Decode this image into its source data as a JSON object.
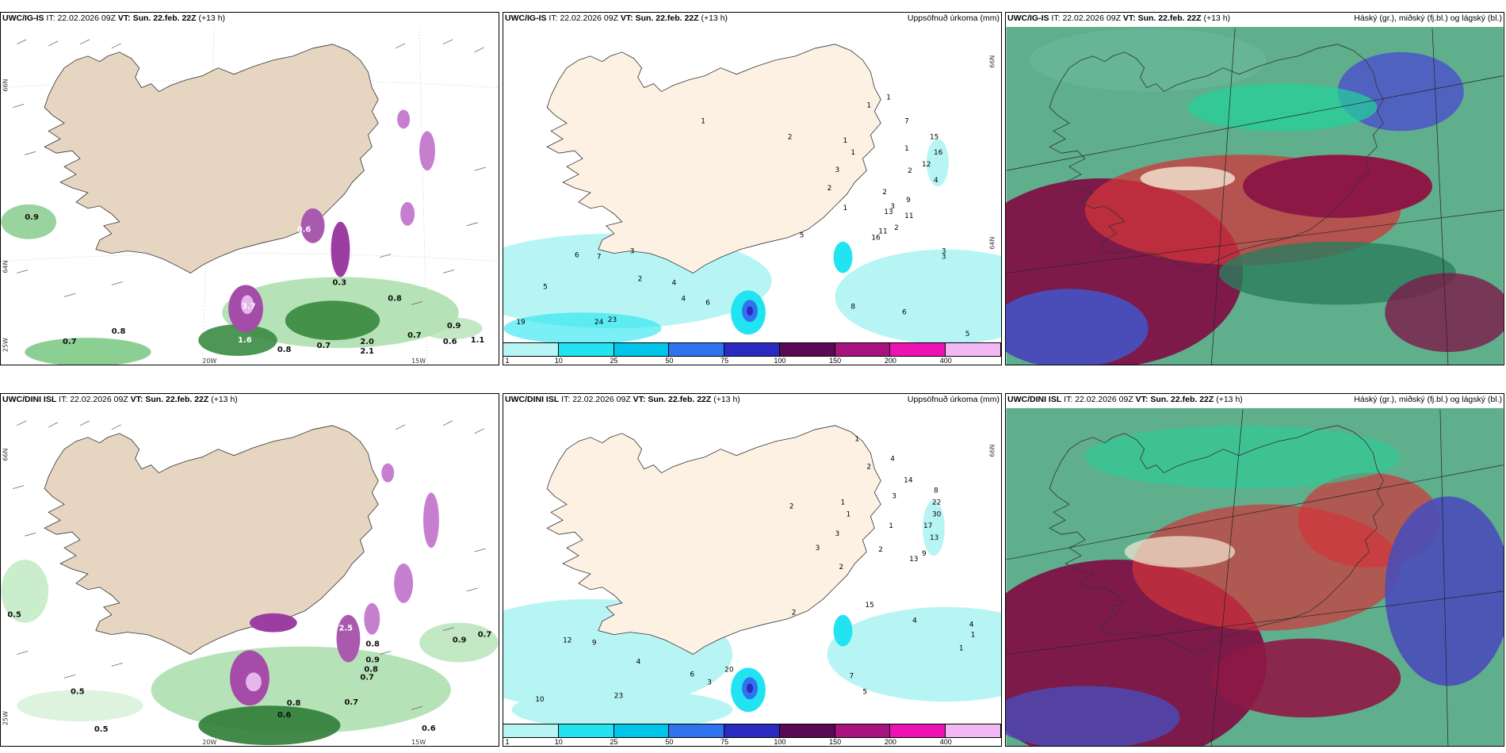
{
  "panels": {
    "tl": {
      "model": "UWC/IG-IS",
      "it_label": "IT:",
      "it": "22.02.2026 09Z",
      "vt_label": "VT:",
      "vt": "Sun. 22.feb. 22Z",
      "lead": "(+13 h)",
      "right": ""
    },
    "tm": {
      "model": "UWC/IG-IS",
      "it_label": "IT:",
      "it": "22.02.2026 09Z",
      "vt_label": "VT:",
      "vt": "Sun. 22.feb. 22Z",
      "lead": "(+13 h)",
      "right": "Uppsöfnuð úrkoma (mm)"
    },
    "tr": {
      "model": "UWC/IG-IS",
      "it_label": "IT:",
      "it": "22.02.2026 09Z",
      "vt_label": "VT:",
      "vt": "Sun. 22.feb. 22Z",
      "lead": "(+13 h)",
      "right": "Háský (gr.), miðský (fj.bl.) og lágský (bl.)"
    },
    "bl": {
      "model": "UWC/DINI ISL",
      "it_label": "IT:",
      "it": "22.02.2026 09Z",
      "vt_label": "VT:",
      "vt": "Sun. 22.feb. 22Z",
      "lead": "(+13 h)",
      "right": ""
    },
    "bm": {
      "model": "UWC/DINI ISL",
      "it_label": "IT:",
      "it": "22.02.2026 09Z",
      "vt_label": "VT:",
      "vt": "Sun. 22.feb. 22Z",
      "lead": "(+13 h)",
      "right": "Uppsöfnuð úrkoma (mm)"
    },
    "br": {
      "model": "UWC/DINI ISL",
      "it_label": "IT:",
      "it": "22.02.2026 09Z",
      "vt_label": "VT:",
      "vt": "Sun. 22.feb. 22Z",
      "lead": "(+13 h)",
      "right": "Háský (gr.), miðský (fj.bl.) og lágský (bl.)"
    }
  },
  "coords": {
    "lat66": "66N",
    "lat64": "64N",
    "lon20": "20W",
    "lon15": "15W",
    "lon25": "25W"
  },
  "colorbar": {
    "labels": [
      "1",
      "10",
      "25",
      "50",
      "75",
      "100",
      "150",
      "200",
      "400"
    ],
    "colors": [
      "#b7f5f5",
      "#22e4f0",
      "#00c4e8",
      "#2f73ee",
      "#2a2ac0",
      "#5a0a54",
      "#a8137f",
      "#ec12b4",
      "#f2b8f4"
    ]
  },
  "precip_top": [
    "1",
    "1",
    "7",
    "2",
    "1",
    "15",
    "1",
    "16",
    "1",
    "12",
    "2",
    "3",
    "2",
    "4",
    "2",
    "9",
    "3",
    "13",
    "1",
    "11",
    "2",
    "5",
    "16",
    "11",
    "3",
    "6",
    "7",
    "3",
    "5",
    "2",
    "4",
    "4",
    "6",
    "3",
    "8",
    "6",
    "19",
    "24",
    "23",
    "5",
    "1"
  ],
  "precip_bot": [
    "1",
    "2",
    "4",
    "14",
    "3",
    "8",
    "22",
    "30",
    "1",
    "2",
    "1",
    "17",
    "13",
    "3",
    "1",
    "2",
    "9",
    "3",
    "13",
    "2",
    "2",
    "15",
    "4",
    "4",
    "1",
    "12",
    "9",
    "4",
    "7",
    "6",
    "3",
    "20",
    "5",
    "1",
    "10",
    "23"
  ],
  "wind_top": [
    "0.9",
    "0.6",
    "0.8",
    "0.7",
    "0.8",
    "0.8",
    "0.7",
    "2.0",
    "2.1",
    "0.9",
    "1.1",
    "0.6",
    "3.7",
    "0.7",
    "1.6",
    "0.3"
  ],
  "wind_bot": [
    "0.5",
    "0.5",
    "0.5",
    "0.9",
    "0.8",
    "0.8",
    "0.7",
    "0.6",
    "0.7",
    "0.6",
    "0.9",
    "0.8",
    "0.7",
    "2.5"
  ]
}
